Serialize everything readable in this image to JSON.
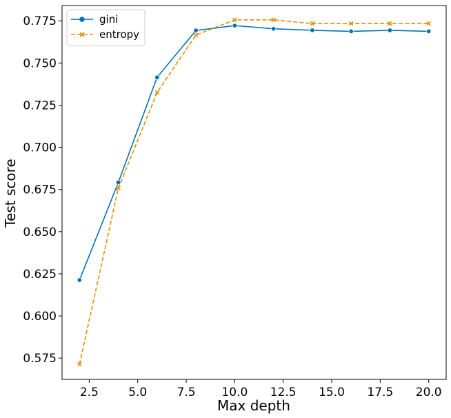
{
  "chart_data": {
    "type": "line",
    "xlabel": "Max depth",
    "ylabel": "Test score",
    "xlim": [
      1.1,
      20.9
    ],
    "ylim": [
      0.5624,
      0.7841
    ],
    "xticks": [
      2.5,
      5.0,
      7.5,
      10.0,
      12.5,
      15.0,
      17.5,
      20.0
    ],
    "yticks": [
      0.575,
      0.6,
      0.625,
      0.65,
      0.675,
      0.7,
      0.725,
      0.75,
      0.775
    ],
    "xtick_labels": [
      "2.5",
      "5.0",
      "7.5",
      "10.0",
      "12.5",
      "15.0",
      "17.5",
      "20.0"
    ],
    "ytick_labels": [
      "0.575",
      "0.600",
      "0.625",
      "0.650",
      "0.675",
      "0.700",
      "0.725",
      "0.750",
      "0.775"
    ],
    "grid": false,
    "legend_position": "top-left",
    "x": [
      2,
      4,
      6,
      8,
      10,
      12,
      14,
      16,
      18,
      20
    ],
    "series": [
      {
        "name": "gini",
        "color": "#0173b2",
        "marker": "circle",
        "linestyle": "solid",
        "values": [
          0.6213,
          0.6792,
          0.7415,
          0.7693,
          0.7722,
          0.7703,
          0.7694,
          0.7688,
          0.7694,
          0.7688
        ]
      },
      {
        "name": "entropy",
        "color": "#de8f05",
        "marker": "x",
        "linestyle": "dashed",
        "values": [
          0.5714,
          0.6758,
          0.7325,
          0.7666,
          0.7756,
          0.7756,
          0.7734,
          0.7734,
          0.7734,
          0.7734
        ]
      }
    ]
  }
}
